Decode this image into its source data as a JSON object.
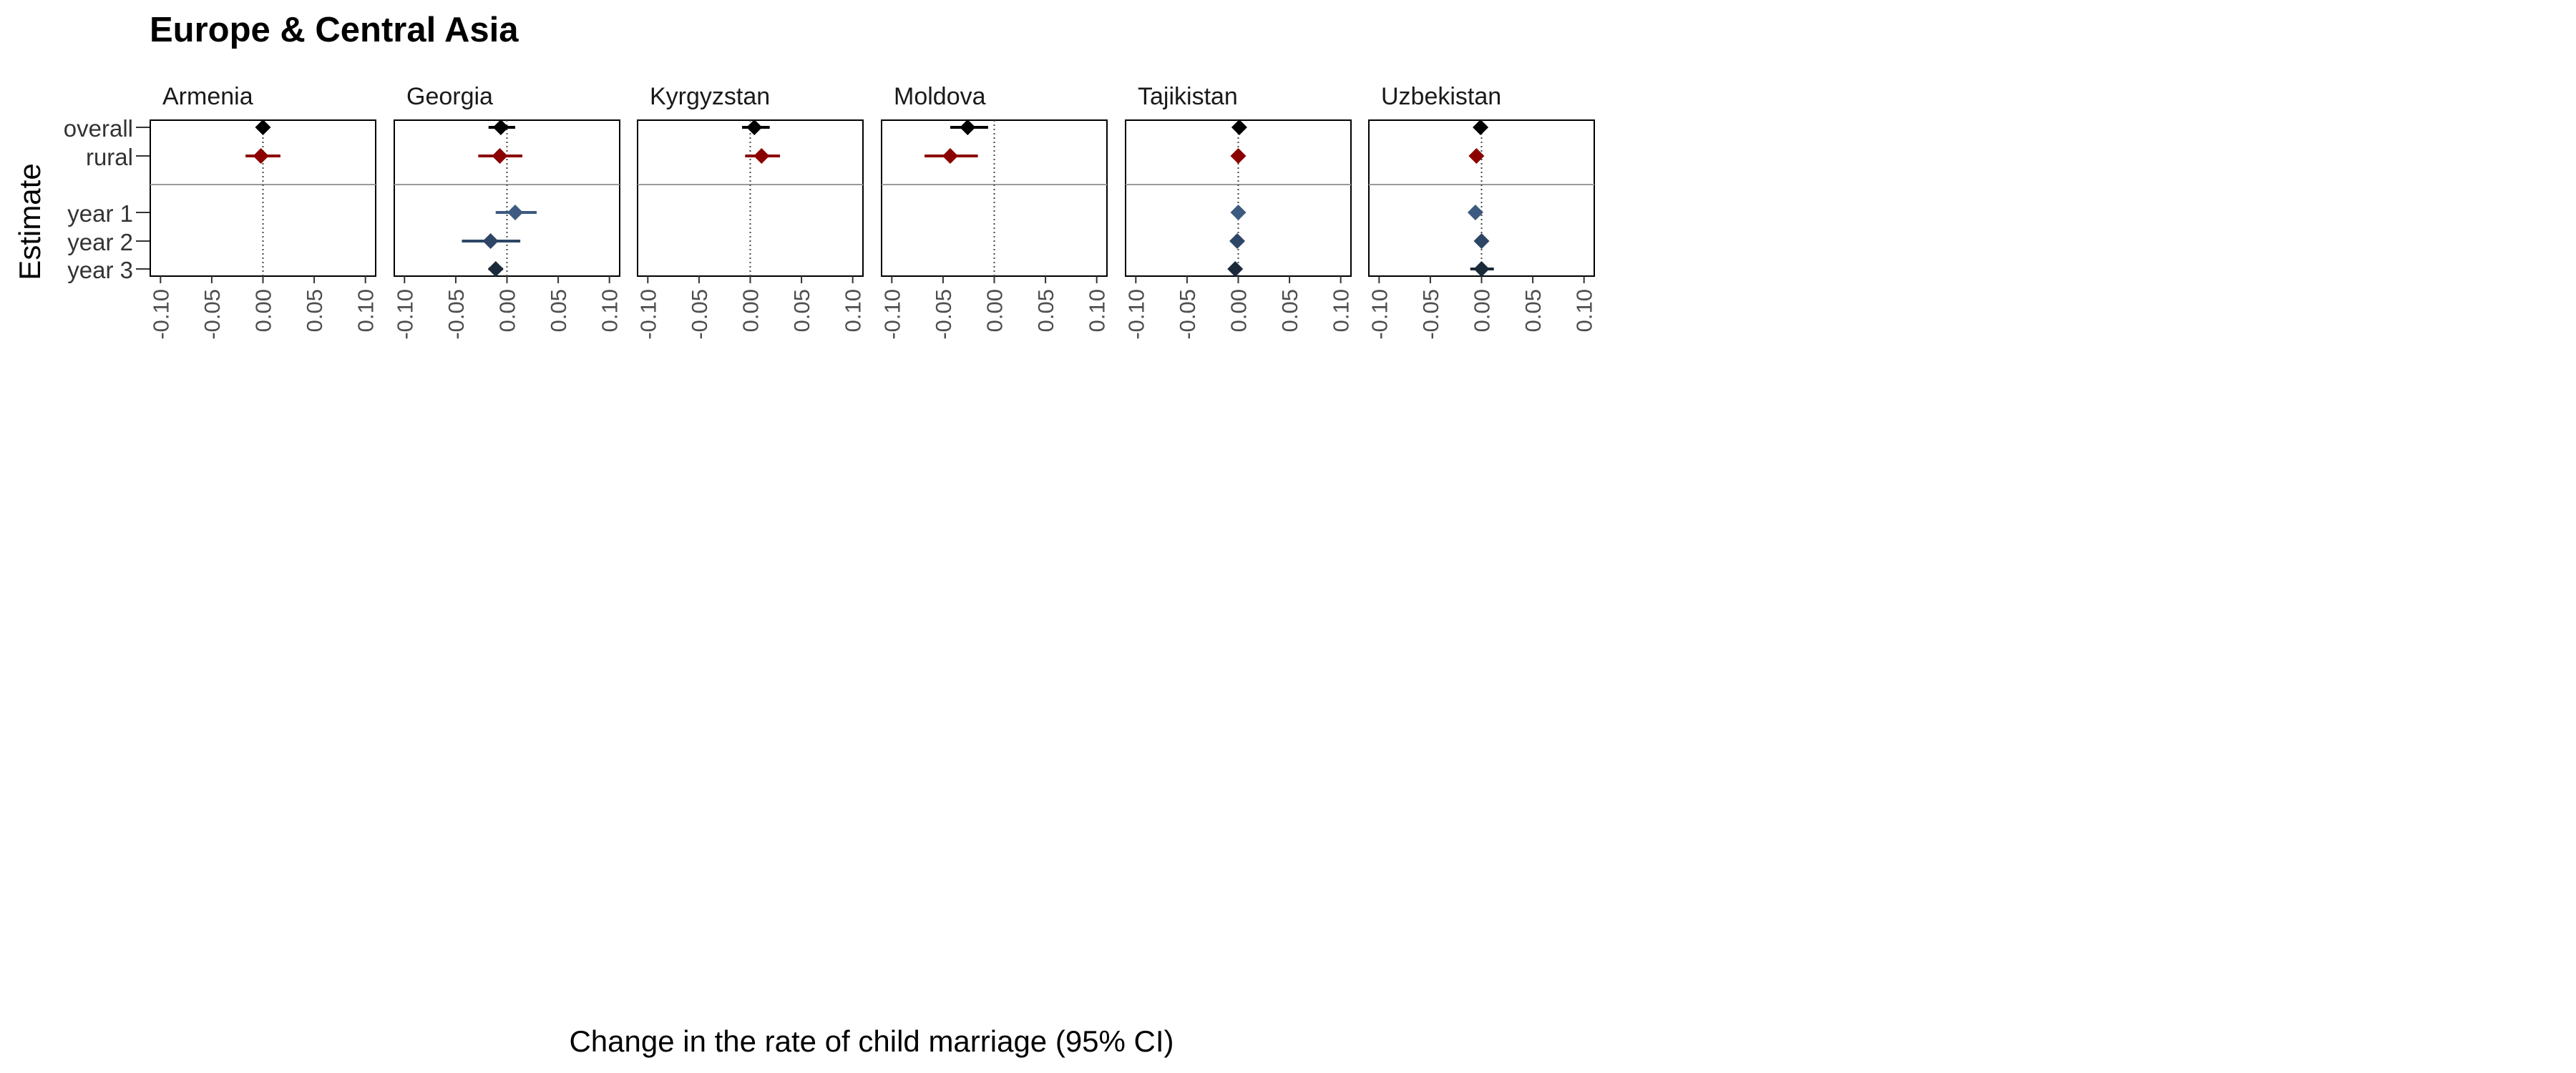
{
  "chart_data": {
    "type": "scatter",
    "title": "Europe & Central Asia",
    "xlabel": "Change in the rate of child marriage (95% CI)",
    "ylabel": "Estimate",
    "xlim": [
      -0.11,
      0.11
    ],
    "xticks": [
      -0.1,
      -0.05,
      0.0,
      0.05,
      0.1
    ],
    "xtick_labels": [
      "-0.10",
      "-0.05",
      "0.00",
      "0.05",
      "0.10"
    ],
    "categories": [
      "overall",
      "rural",
      "year 1",
      "year 2",
      "year 3"
    ],
    "reference_line_x": 0.0,
    "grid": false,
    "legend": "none",
    "colors": {
      "overall": "#000000",
      "rural": "#8b0000",
      "year 1": "#3d5a80",
      "year 2": "#2e4665",
      "year 3": "#1b2a3a"
    },
    "panels": [
      {
        "name": "Armenia",
        "points": [
          {
            "estimate": "overall",
            "value": 0.0,
            "low": -0.004,
            "high": 0.004
          },
          {
            "estimate": "rural",
            "value": -0.002,
            "low": -0.017,
            "high": 0.017
          }
        ]
      },
      {
        "name": "Georgia",
        "points": [
          {
            "estimate": "overall",
            "value": -0.006,
            "low": -0.018,
            "high": 0.008
          },
          {
            "estimate": "rural",
            "value": -0.007,
            "low": -0.028,
            "high": 0.015
          },
          {
            "estimate": "year 1",
            "value": 0.008,
            "low": -0.011,
            "high": 0.029
          },
          {
            "estimate": "year 2",
            "value": -0.016,
            "low": -0.044,
            "high": 0.013
          },
          {
            "estimate": "year 3",
            "value": -0.011,
            "low": -0.018,
            "high": -0.004
          }
        ]
      },
      {
        "name": "Kyrgyzstan",
        "points": [
          {
            "estimate": "overall",
            "value": 0.004,
            "low": -0.008,
            "high": 0.019
          },
          {
            "estimate": "rural",
            "value": 0.011,
            "low": -0.005,
            "high": 0.029
          }
        ]
      },
      {
        "name": "Moldova",
        "points": [
          {
            "estimate": "overall",
            "value": -0.026,
            "low": -0.043,
            "high": -0.006
          },
          {
            "estimate": "rural",
            "value": -0.043,
            "low": -0.068,
            "high": -0.016
          }
        ]
      },
      {
        "name": "Tajikistan",
        "points": [
          {
            "estimate": "overall",
            "value": 0.001,
            "low": -0.002,
            "high": 0.004
          },
          {
            "estimate": "rural",
            "value": 0.0,
            "low": -0.002,
            "high": 0.002
          },
          {
            "estimate": "year 1",
            "value": 0.0,
            "low": -0.002,
            "high": 0.002
          },
          {
            "estimate": "year 2",
            "value": -0.001,
            "low": -0.003,
            "high": 0.001
          },
          {
            "estimate": "year 3",
            "value": -0.003,
            "low": -0.006,
            "high": 0.0
          }
        ]
      },
      {
        "name": "Uzbekistan",
        "points": [
          {
            "estimate": "overall",
            "value": -0.001,
            "low": -0.004,
            "high": 0.002
          },
          {
            "estimate": "rural",
            "value": -0.005,
            "low": -0.008,
            "high": -0.002
          },
          {
            "estimate": "year 1",
            "value": -0.006,
            "low": -0.009,
            "high": -0.003
          },
          {
            "estimate": "year 2",
            "value": 0.0,
            "low": -0.003,
            "high": 0.003
          },
          {
            "estimate": "year 3",
            "value": 0.0,
            "low": -0.011,
            "high": 0.012
          }
        ]
      }
    ]
  }
}
